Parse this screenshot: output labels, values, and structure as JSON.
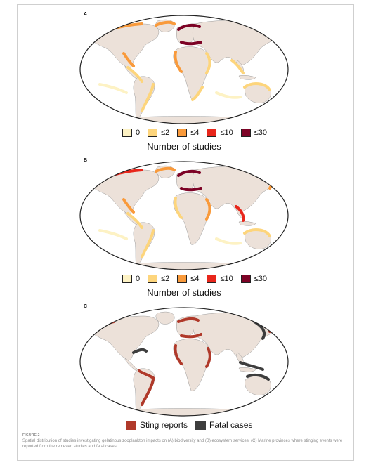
{
  "figure": {
    "panels": [
      {
        "letter": "A",
        "legend_title": "Number of studies",
        "legend": [
          {
            "label": "0",
            "color": "#fdf2c4"
          },
          {
            "label": "≤2",
            "color": "#fdd57c"
          },
          {
            "label": "≤4",
            "color": "#f99a3b"
          },
          {
            "label": "≤10",
            "color": "#e8261b"
          },
          {
            "label": "≤30",
            "color": "#7d0326"
          }
        ]
      },
      {
        "letter": "B",
        "legend_title": "Number of studies",
        "legend": [
          {
            "label": "0",
            "color": "#fdf2c4"
          },
          {
            "label": "≤2",
            "color": "#fdd57c"
          },
          {
            "label": "≤4",
            "color": "#f99a3b"
          },
          {
            "label": "≤10",
            "color": "#e8261b"
          },
          {
            "label": "≤30",
            "color": "#7d0326"
          }
        ]
      },
      {
        "letter": "C",
        "legend_title": "",
        "legend": [
          {
            "label": "Sting reports",
            "color": "#b0392a"
          },
          {
            "label": "Fatal cases",
            "color": "#3d3d3d"
          }
        ]
      }
    ],
    "colors": {
      "land": "#ece1d9",
      "ocean": "#ffffff",
      "outline": "#222222"
    },
    "caption": {
      "label": "FIGURE 2",
      "text": "Spatial distribution of studies investigating gelatinous zooplankton impacts on (A) biodiversity and (B) ecosystem services. (C) Marine provinces where stinging events were reported from the retrieved studies and fatal cases."
    }
  }
}
